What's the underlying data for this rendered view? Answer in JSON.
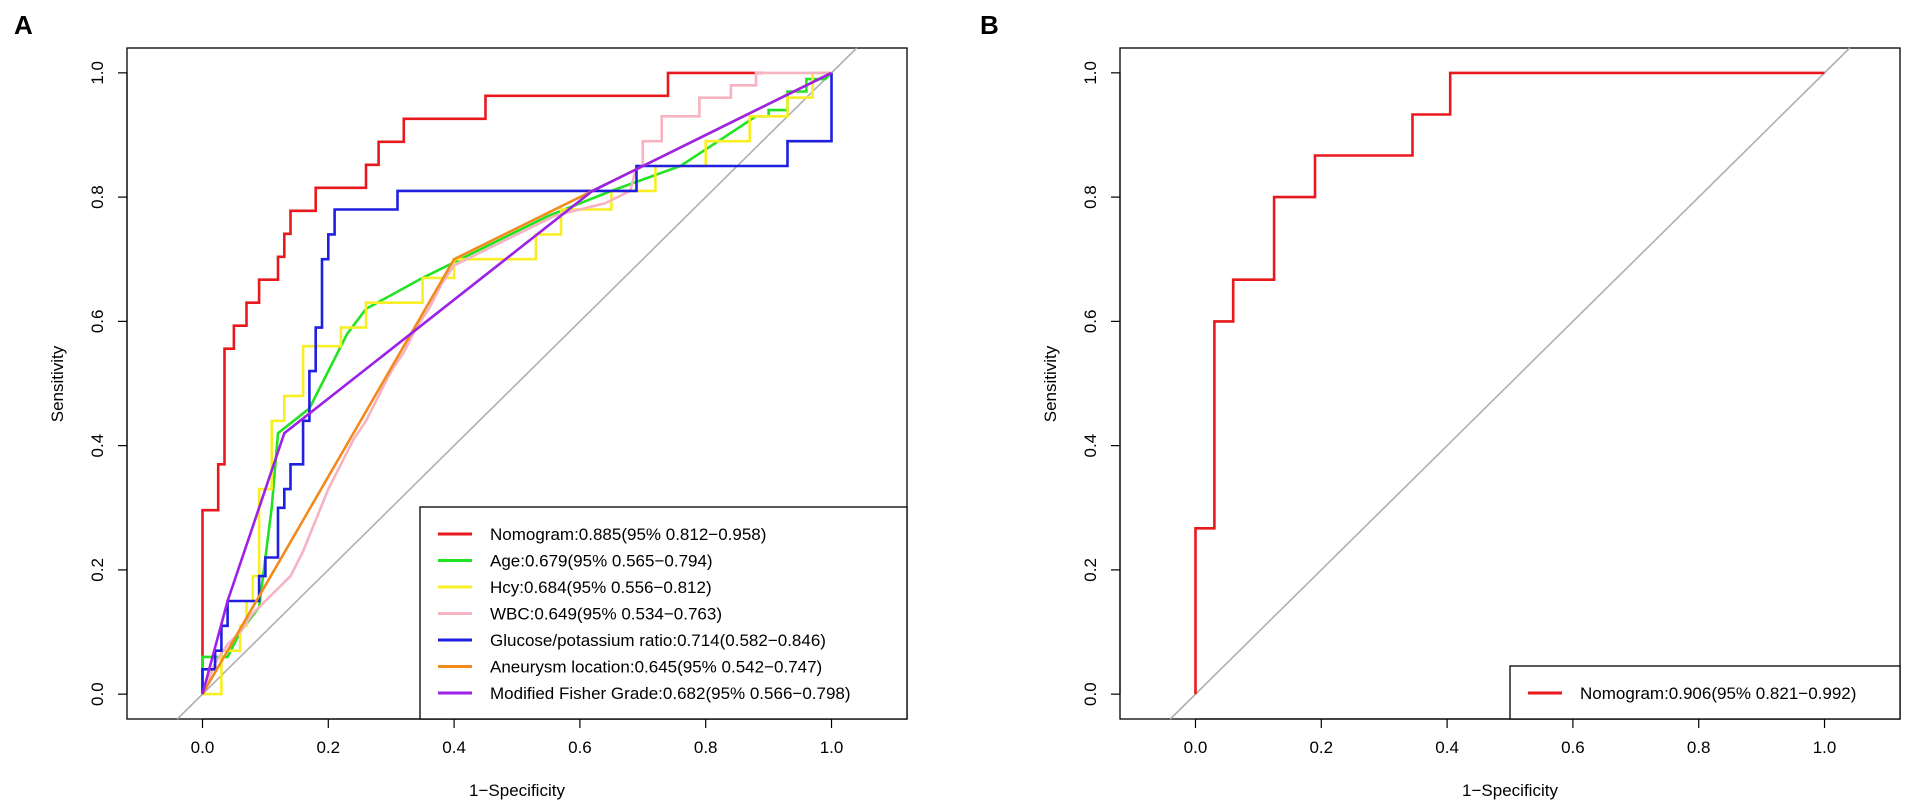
{
  "chart_data": [
    {
      "panel": "A",
      "type": "line",
      "title": "",
      "xlabel": "1−Specificity",
      "ylabel": "Sensitivity",
      "xlim": [
        -0.12,
        1.12
      ],
      "ylim": [
        -0.04,
        1.04
      ],
      "xticks": [
        0.0,
        0.2,
        0.4,
        0.6,
        0.8,
        1.0
      ],
      "yticks": [
        0.0,
        0.2,
        0.4,
        0.6,
        0.8,
        1.0
      ],
      "xtick_labels": [
        "0.0",
        "0.2",
        "0.4",
        "0.6",
        "0.8",
        "1.0"
      ],
      "ytick_labels": [
        "0.0",
        "0.2",
        "0.4",
        "0.6",
        "0.8",
        "1.0"
      ],
      "legend_position": "bottom-right",
      "diagonal": true,
      "series": [
        {
          "name": "Nomogram:0.885(95% 0.812−0.958)",
          "color": "#e8191d",
          "x": [
            0.0,
            0.0,
            0.0,
            0.0,
            0.025,
            0.025,
            0.035,
            0.035,
            0.05,
            0.05,
            0.07,
            0.07,
            0.09,
            0.09,
            0.1,
            0.1,
            0.12,
            0.12,
            0.13,
            0.13,
            0.14,
            0.14,
            0.18,
            0.18,
            0.26,
            0.26,
            0.28,
            0.28,
            0.32,
            0.32,
            0.45,
            0.45,
            0.74,
            0.74,
            0.89
          ],
          "y": [
            0.0,
            0.06,
            0.06,
            0.296,
            0.296,
            0.37,
            0.37,
            0.556,
            0.556,
            0.593,
            0.593,
            0.63,
            0.63,
            0.667,
            0.667,
            0.667,
            0.667,
            0.704,
            0.704,
            0.741,
            0.741,
            0.778,
            0.778,
            0.815,
            0.815,
            0.852,
            0.852,
            0.889,
            0.889,
            0.926,
            0.926,
            0.963,
            0.963,
            1.0,
            1.0
          ]
        },
        {
          "name": "Age:0.679(95% 0.565−0.794)",
          "color": "#22e322",
          "x": [
            0.0,
            0.0,
            0.04,
            0.06,
            0.09,
            0.1,
            0.11,
            0.12,
            0.17,
            0.2,
            0.23,
            0.26,
            0.35,
            0.45,
            0.55,
            0.65,
            0.76,
            0.82,
            0.88,
            0.9,
            0.9,
            0.93,
            0.93,
            0.96,
            0.96,
            0.99,
            1.0
          ],
          "y": [
            0.0,
            0.06,
            0.06,
            0.1,
            0.14,
            0.22,
            0.3,
            0.42,
            0.46,
            0.52,
            0.58,
            0.62,
            0.67,
            0.72,
            0.77,
            0.81,
            0.85,
            0.89,
            0.93,
            0.93,
            0.94,
            0.94,
            0.97,
            0.97,
            0.99,
            0.99,
            1.0
          ]
        },
        {
          "name": "Hcy:0.684(95% 0.556−0.812)",
          "color": "#f7ef24",
          "x": [
            0.0,
            0.03,
            0.03,
            0.06,
            0.06,
            0.07,
            0.07,
            0.08,
            0.08,
            0.09,
            0.09,
            0.11,
            0.11,
            0.13,
            0.13,
            0.16,
            0.16,
            0.22,
            0.22,
            0.26,
            0.26,
            0.3,
            0.3,
            0.35,
            0.35,
            0.4,
            0.4,
            0.48,
            0.48,
            0.53,
            0.53,
            0.57,
            0.57,
            0.65,
            0.65,
            0.72,
            0.72,
            0.8,
            0.8,
            0.87,
            0.87,
            0.93,
            0.93,
            0.97,
            0.97,
            1.0
          ],
          "y": [
            0.0,
            0.0,
            0.07,
            0.07,
            0.11,
            0.11,
            0.15,
            0.15,
            0.19,
            0.19,
            0.33,
            0.33,
            0.44,
            0.44,
            0.48,
            0.48,
            0.56,
            0.56,
            0.59,
            0.59,
            0.63,
            0.63,
            0.63,
            0.63,
            0.67,
            0.67,
            0.7,
            0.7,
            0.7,
            0.7,
            0.74,
            0.74,
            0.78,
            0.78,
            0.81,
            0.81,
            0.85,
            0.85,
            0.89,
            0.89,
            0.93,
            0.93,
            0.96,
            0.96,
            1.0,
            1.0
          ]
        },
        {
          "name": "WBC:0.649(95% 0.534−0.763)",
          "color": "#f6b3c1",
          "x": [
            0.0,
            0.02,
            0.04,
            0.06,
            0.08,
            0.1,
            0.12,
            0.14,
            0.16,
            0.18,
            0.2,
            0.22,
            0.24,
            0.26,
            0.28,
            0.3,
            0.32,
            0.34,
            0.36,
            0.38,
            0.4,
            0.44,
            0.48,
            0.52,
            0.56,
            0.6,
            0.64,
            0.68,
            0.69,
            0.7,
            0.7,
            0.73,
            0.73,
            0.79,
            0.79,
            0.84,
            0.84,
            0.88,
            0.88,
            1.0
          ],
          "y": [
            0.0,
            0.05,
            0.08,
            0.1,
            0.13,
            0.15,
            0.17,
            0.19,
            0.23,
            0.28,
            0.33,
            0.37,
            0.41,
            0.44,
            0.48,
            0.52,
            0.55,
            0.59,
            0.62,
            0.66,
            0.69,
            0.71,
            0.73,
            0.75,
            0.77,
            0.78,
            0.79,
            0.81,
            0.85,
            0.85,
            0.89,
            0.89,
            0.93,
            0.93,
            0.96,
            0.96,
            0.98,
            0.98,
            1.0,
            1.0
          ]
        },
        {
          "name": "Glucose/potassium ratio:0.714(0.582−0.846)",
          "color": "#1f1fe0",
          "x": [
            0.0,
            0.0,
            0.02,
            0.02,
            0.03,
            0.03,
            0.04,
            0.04,
            0.09,
            0.09,
            0.1,
            0.1,
            0.12,
            0.12,
            0.13,
            0.13,
            0.14,
            0.14,
            0.16,
            0.16,
            0.17,
            0.17,
            0.18,
            0.18,
            0.19,
            0.19,
            0.2,
            0.2,
            0.21,
            0.21,
            0.31,
            0.31,
            0.67,
            0.67,
            0.69,
            0.69,
            0.93,
            0.93,
            1.0,
            1.0,
            1.0
          ],
          "y": [
            0.0,
            0.04,
            0.04,
            0.07,
            0.07,
            0.11,
            0.11,
            0.15,
            0.15,
            0.19,
            0.19,
            0.22,
            0.22,
            0.3,
            0.3,
            0.33,
            0.33,
            0.37,
            0.37,
            0.44,
            0.44,
            0.52,
            0.52,
            0.59,
            0.59,
            0.7,
            0.7,
            0.74,
            0.74,
            0.78,
            0.78,
            0.81,
            0.81,
            0.81,
            0.81,
            0.85,
            0.85,
            0.89,
            0.89,
            0.89,
            1.0
          ]
        },
        {
          "name": "Aneurysm location:0.645(95% 0.542−0.747)",
          "color": "#f28a1c",
          "x": [
            0.0,
            0.4,
            1.0
          ],
          "y": [
            0.0,
            0.7,
            1.0
          ]
        },
        {
          "name": "Modified Fisher Grade:0.682(95% 0.566−0.798)",
          "color": "#9b22e6",
          "x": [
            0.0,
            0.04,
            0.13,
            0.62,
            1.0
          ],
          "y": [
            0.0,
            0.15,
            0.42,
            0.81,
            1.0
          ]
        }
      ]
    },
    {
      "panel": "B",
      "type": "line",
      "title": "",
      "xlabel": "1−Specificity",
      "ylabel": "Sensitivity",
      "xlim": [
        -0.12,
        1.12
      ],
      "ylim": [
        -0.04,
        1.04
      ],
      "xticks": [
        0.0,
        0.2,
        0.4,
        0.6,
        0.8,
        1.0
      ],
      "yticks": [
        0.0,
        0.2,
        0.4,
        0.6,
        0.8,
        1.0
      ],
      "xtick_labels": [
        "0.0",
        "0.2",
        "0.4",
        "0.6",
        "0.8",
        "1.0"
      ],
      "ytick_labels": [
        "0.0",
        "0.2",
        "0.4",
        "0.6",
        "0.8",
        "1.0"
      ],
      "legend_position": "bottom-right",
      "diagonal": true,
      "series": [
        {
          "name": "Nomogram:0.906(95% 0.821−0.992)",
          "color": "#e8191d",
          "x": [
            0.0,
            0.0,
            0.03,
            0.03,
            0.06,
            0.06,
            0.125,
            0.125,
            0.19,
            0.19,
            0.345,
            0.345,
            0.405,
            0.405,
            1.0
          ],
          "y": [
            0.0,
            0.267,
            0.267,
            0.6,
            0.6,
            0.667,
            0.667,
            0.8,
            0.8,
            0.867,
            0.867,
            0.933,
            0.933,
            1.0,
            1.0
          ]
        }
      ]
    }
  ]
}
